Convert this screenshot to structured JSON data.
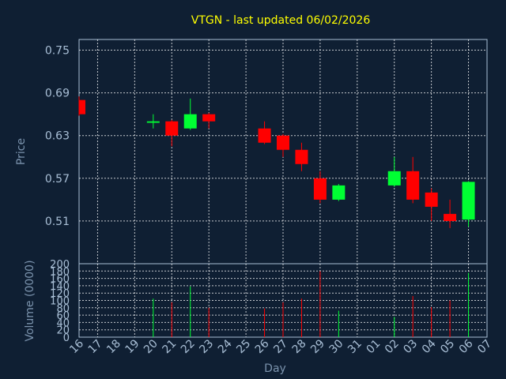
{
  "colors": {
    "background": "#0f1f33",
    "up": "#00ff33",
    "down": "#ff0000",
    "title": "#ffff00",
    "grid": "#ffffff",
    "text": "#a9bfd6"
  },
  "chart_data": {
    "type": "candlestick",
    "title": "VTGN - last updated 06/02/2026",
    "price_label": "Price",
    "volume_label": "Volume (0000)",
    "xlabel": "Day",
    "x_ticks": [
      "16",
      "17",
      "18",
      "19",
      "20",
      "21",
      "22",
      "23",
      "24",
      "25",
      "26",
      "27",
      "28",
      "29",
      "30",
      "31",
      "01",
      "02",
      "03",
      "04",
      "05",
      "06",
      "07"
    ],
    "price_ticks": [
      "0.75",
      "0.69",
      "0.63",
      "0.57",
      "0.51"
    ],
    "price_tick_values": [
      0.75,
      0.69,
      0.63,
      0.57,
      0.51
    ],
    "price_range": [
      0.45,
      0.765
    ],
    "volume_ticks": [
      "0",
      "20",
      "40",
      "60",
      "80",
      "100",
      "120",
      "140",
      "160",
      "180",
      "200"
    ],
    "volume_range": [
      0,
      200
    ],
    "candles": [
      {
        "day": 0,
        "open": 0.68,
        "close": 0.66,
        "high": 0.685,
        "low": 0.658,
        "volume": 0
      },
      {
        "day": 4,
        "open": 0.648,
        "close": 0.65,
        "high": 0.66,
        "low": 0.64,
        "volume": 105
      },
      {
        "day": 5,
        "open": 0.65,
        "close": 0.63,
        "high": 0.652,
        "low": 0.615,
        "volume": 95
      },
      {
        "day": 6,
        "open": 0.64,
        "close": 0.66,
        "high": 0.682,
        "low": 0.638,
        "volume": 138
      },
      {
        "day": 7,
        "open": 0.66,
        "close": 0.65,
        "high": 0.662,
        "low": 0.64,
        "volume": 80
      },
      {
        "day": 10,
        "open": 0.64,
        "close": 0.62,
        "high": 0.65,
        "low": 0.618,
        "volume": 78
      },
      {
        "day": 11,
        "open": 0.63,
        "close": 0.61,
        "high": 0.632,
        "low": 0.6,
        "volume": 95
      },
      {
        "day": 12,
        "open": 0.61,
        "close": 0.59,
        "high": 0.62,
        "low": 0.58,
        "volume": 105
      },
      {
        "day": 13,
        "open": 0.57,
        "close": 0.54,
        "high": 0.58,
        "low": 0.535,
        "volume": 180
      },
      {
        "day": 14,
        "open": 0.54,
        "close": 0.56,
        "high": 0.562,
        "low": 0.538,
        "volume": 72
      },
      {
        "day": 17,
        "open": 0.56,
        "close": 0.58,
        "high": 0.6,
        "low": 0.558,
        "volume": 55
      },
      {
        "day": 18,
        "open": 0.58,
        "close": 0.54,
        "high": 0.6,
        "low": 0.535,
        "volume": 112
      },
      {
        "day": 19,
        "open": 0.55,
        "close": 0.53,
        "high": 0.556,
        "low": 0.51,
        "volume": 82
      },
      {
        "day": 20,
        "open": 0.52,
        "close": 0.51,
        "high": 0.54,
        "low": 0.5,
        "volume": 100
      },
      {
        "day": 21,
        "open": 0.512,
        "close": 0.565,
        "high": 0.566,
        "low": 0.502,
        "volume": 175
      }
    ]
  }
}
